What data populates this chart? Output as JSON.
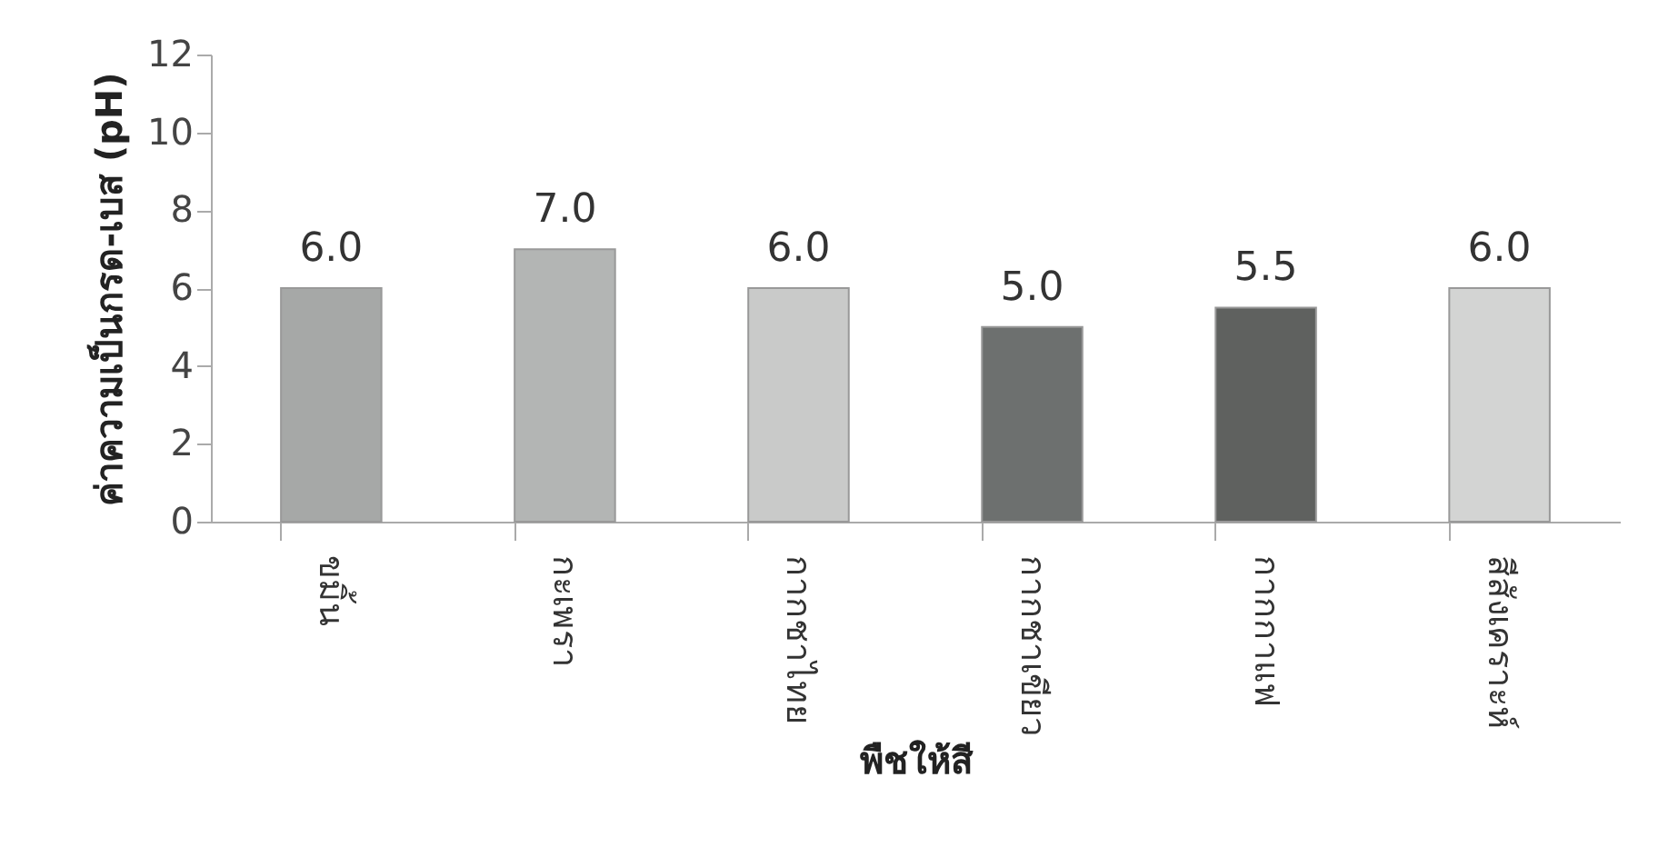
{
  "chart_data": {
    "type": "bar",
    "xlabel": "พืชให้สี",
    "ylabel": "ค่าความเป็นกรด-เบส (pH)",
    "categories": [
      "ขมิ้น",
      "กะเพรา",
      "กากชาไทย",
      "กากชาเขียว",
      "กากกาแฟ",
      "สีสังเคราะห์"
    ],
    "values": [
      6.0,
      7.0,
      6.0,
      5.0,
      5.5,
      6.0
    ],
    "colors": [
      "#a6a8a7",
      "#b3b5b4",
      "#c9cac9",
      "#6d706f",
      "#5f615f",
      "#d3d4d3"
    ],
    "value_labels": [
      "6.0",
      "7.0",
      "6.0",
      "5.0",
      "5.5",
      "6.0"
    ],
    "ylim": [
      0,
      12
    ],
    "yticks": [
      0,
      2,
      4,
      6,
      8,
      10,
      12
    ],
    "grid": false
  }
}
